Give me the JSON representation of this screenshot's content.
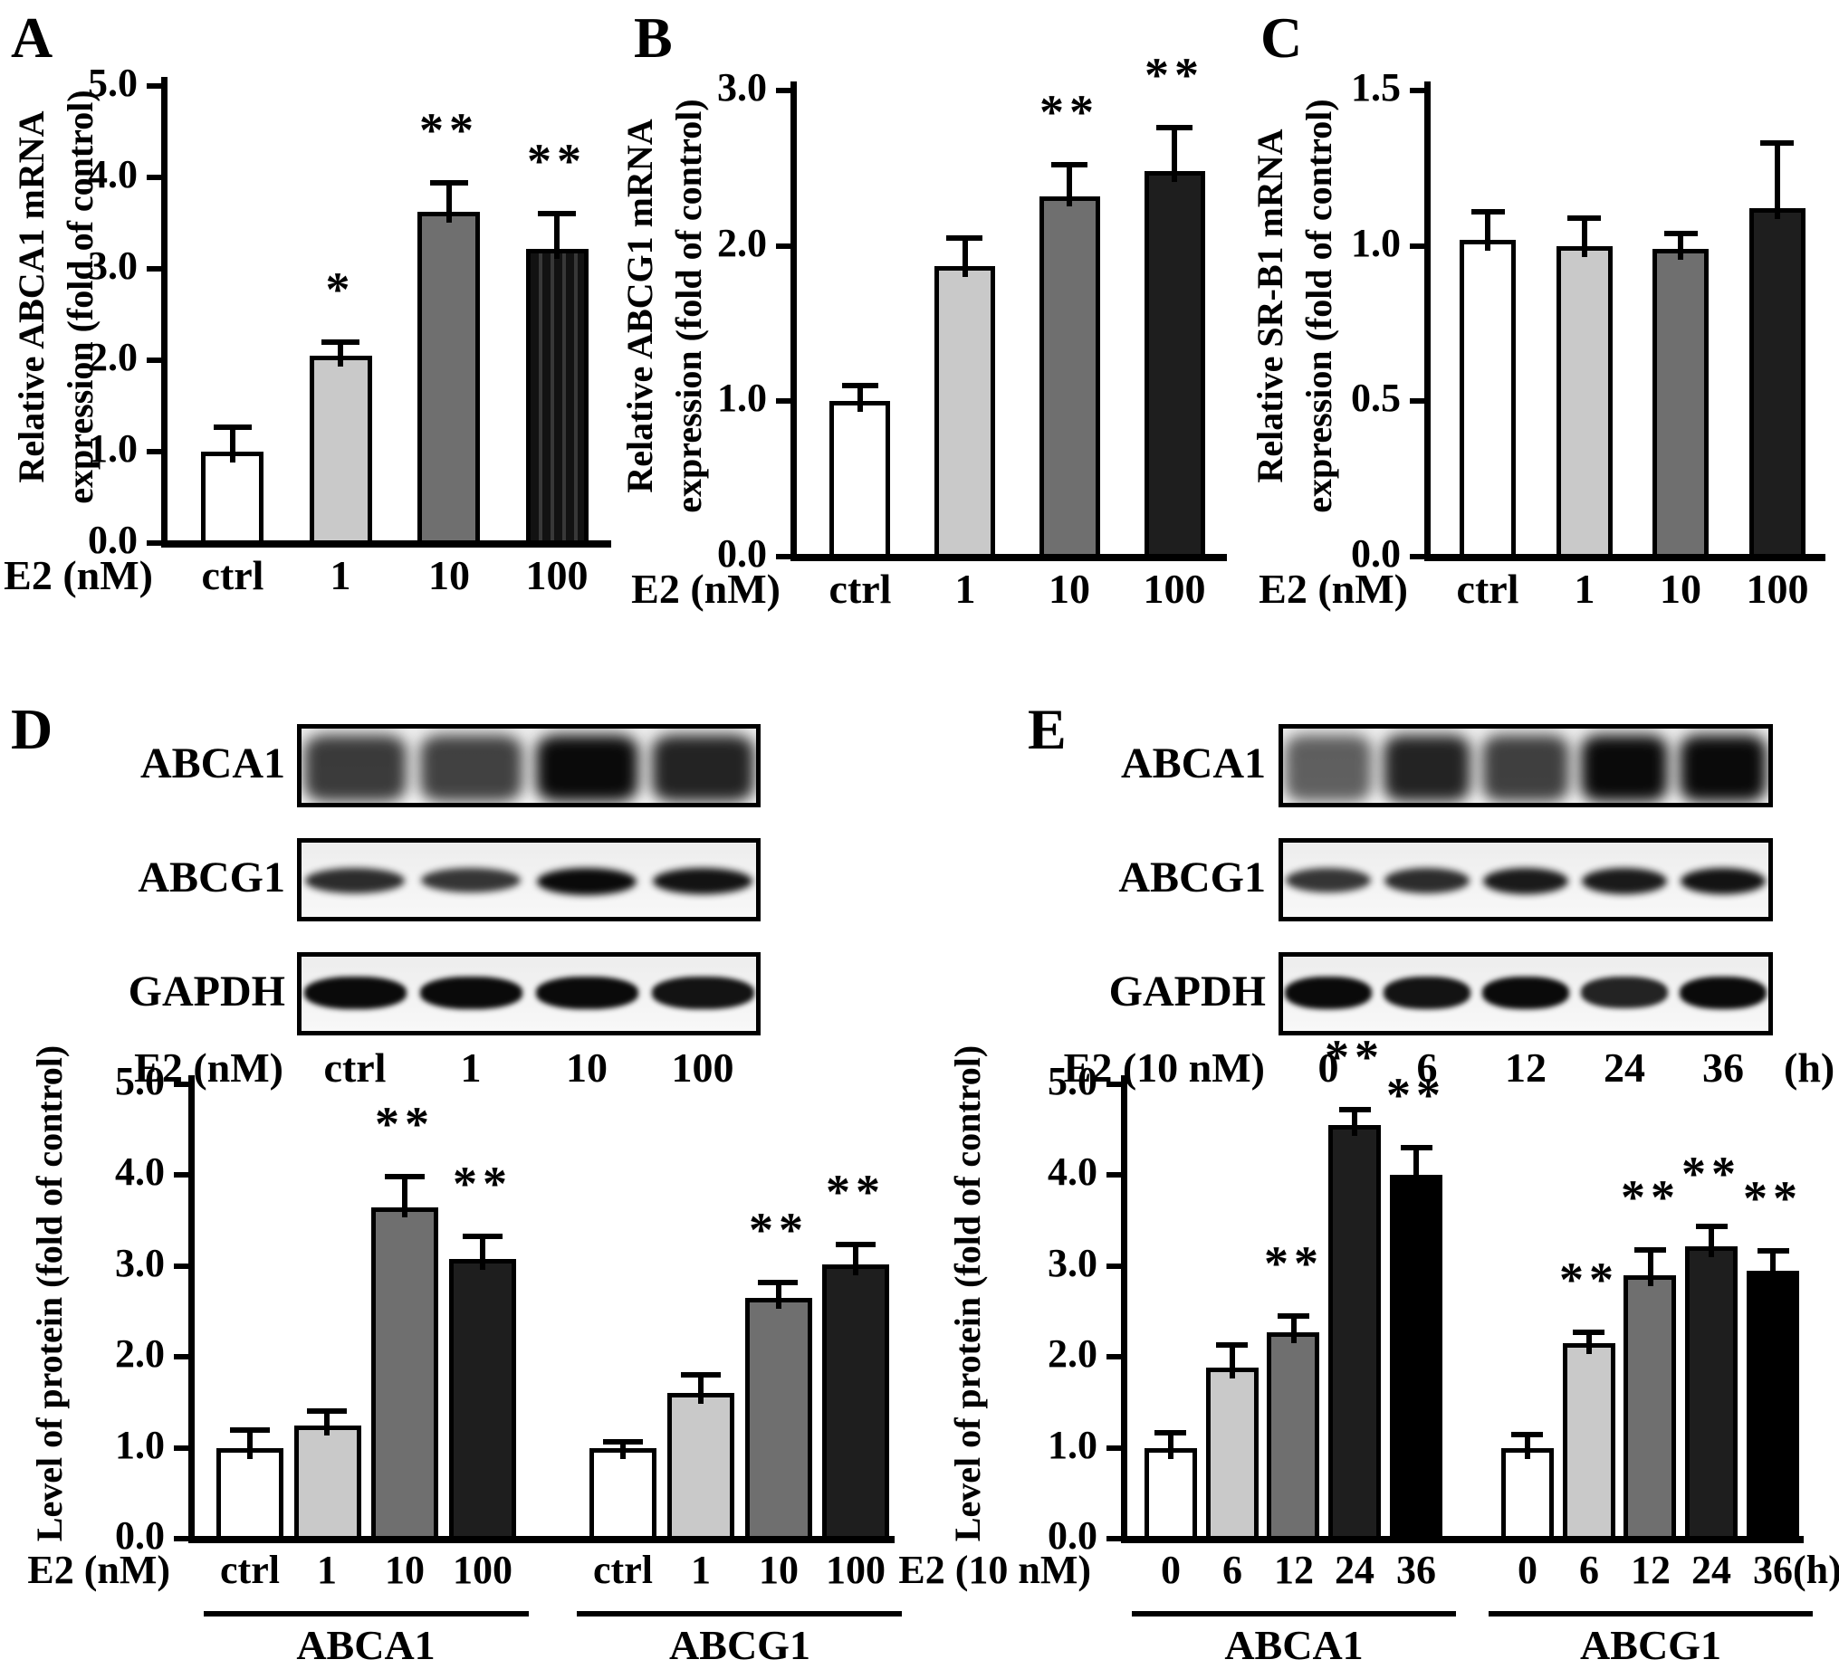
{
  "figure": {
    "panel_labels": {
      "A": "A",
      "B": "B",
      "C": "C",
      "D": "D",
      "E": "E"
    }
  },
  "styles": {
    "fill_colors": {
      "white": "#ffffff",
      "lightgray": "#c9c9c9",
      "gray": "#6f6f6f",
      "dark": "#1e1e1e",
      "black": "#000000",
      "striped": "striped"
    }
  },
  "chart_data": [
    {
      "id": "chart-A",
      "type": "bar",
      "title": "",
      "ylabel_lines": [
        "Relative ABCA1 mRNA",
        "expression (fold of control)"
      ],
      "ylim": [
        0,
        5
      ],
      "yticks": [
        "0.0",
        "1.0",
        "2.0",
        "3.0",
        "4.0",
        "5.0"
      ],
      "x_prefix": "E2 (nM)",
      "x_suffix": "",
      "grid": false,
      "legend": null,
      "groups": [
        {
          "label": "",
          "categories": [
            "ctrl",
            "1",
            "10",
            "100"
          ],
          "values": [
            1.0,
            2.05,
            3.62,
            3.22
          ],
          "errors": [
            0.27,
            0.15,
            0.32,
            0.38
          ],
          "sig": [
            "",
            "*",
            "**",
            "**"
          ],
          "fills": [
            "white",
            "lightgray",
            "gray",
            "striped"
          ]
        }
      ]
    },
    {
      "id": "chart-B",
      "type": "bar",
      "title": "",
      "ylabel_lines": [
        "Relative ABCG1 mRNA",
        "expression (fold of control)"
      ],
      "ylim": [
        0,
        3
      ],
      "yticks": [
        "0.0",
        "1.0",
        "2.0",
        "3.0"
      ],
      "x_prefix": "E2 (nM)",
      "x_suffix": "",
      "grid": false,
      "legend": null,
      "groups": [
        {
          "label": "",
          "categories": [
            "ctrl",
            "1",
            "10",
            "100"
          ],
          "values": [
            1.0,
            1.87,
            2.32,
            2.48
          ],
          "errors": [
            0.1,
            0.18,
            0.2,
            0.28
          ],
          "sig": [
            "",
            "",
            "**",
            "**"
          ],
          "fills": [
            "white",
            "lightgray",
            "gray",
            "dark"
          ]
        }
      ]
    },
    {
      "id": "chart-C",
      "type": "bar",
      "title": "",
      "ylabel_lines": [
        "Relative SR-B1 mRNA",
        "expression (fold of control)"
      ],
      "ylim": [
        0,
        1.5
      ],
      "yticks": [
        "0.0",
        "0.5",
        "1.0",
        "1.5"
      ],
      "x_prefix": "E2 (nM)",
      "x_suffix": "",
      "grid": false,
      "legend": null,
      "groups": [
        {
          "label": "",
          "categories": [
            "ctrl",
            "1",
            "10",
            "100"
          ],
          "values": [
            1.02,
            1.0,
            0.99,
            1.12
          ],
          "errors": [
            0.09,
            0.09,
            0.05,
            0.21
          ],
          "sig": [
            "",
            "",
            "",
            ""
          ],
          "fills": [
            "white",
            "lightgray",
            "gray",
            "dark"
          ]
        }
      ]
    },
    {
      "id": "chart-D-protein",
      "type": "bar",
      "title": "",
      "ylabel_lines": [
        "Level of protein (fold of control)"
      ],
      "ylim": [
        0,
        5
      ],
      "yticks": [
        "0.0",
        "1.0",
        "2.0",
        "3.0",
        "4.0",
        "5.0"
      ],
      "x_prefix": "E2 (nM)",
      "x_suffix": "",
      "grid": false,
      "legend": null,
      "groups": [
        {
          "label": "ABCA1",
          "categories": [
            "ctrl",
            "1",
            "10",
            "100"
          ],
          "values": [
            1.0,
            1.25,
            3.65,
            3.08
          ],
          "errors": [
            0.2,
            0.15,
            0.33,
            0.25
          ],
          "sig": [
            "",
            "",
            "**",
            "**"
          ],
          "fills": [
            "white",
            "lightgray",
            "gray",
            "dark"
          ]
        },
        {
          "label": "ABCG1",
          "categories": [
            "ctrl",
            "1",
            "10",
            "100"
          ],
          "values": [
            1.0,
            1.6,
            2.65,
            3.02
          ],
          "errors": [
            0.07,
            0.2,
            0.17,
            0.22
          ],
          "sig": [
            "",
            "",
            "**",
            "**"
          ],
          "fills": [
            "white",
            "lightgray",
            "gray",
            "dark"
          ]
        }
      ]
    },
    {
      "id": "chart-E-protein",
      "type": "bar",
      "title": "",
      "ylabel_lines": [
        "Level of protein (fold of control)"
      ],
      "ylim": [
        0,
        5
      ],
      "yticks": [
        "0.0",
        "1.0",
        "2.0",
        "3.0",
        "4.0",
        "5.0"
      ],
      "x_prefix": "E2 (10 nM)",
      "x_suffix": "(h)",
      "grid": false,
      "legend": null,
      "groups": [
        {
          "label": "ABCA1",
          "categories": [
            "0",
            "6",
            "12",
            "24",
            "36"
          ],
          "values": [
            1.0,
            1.88,
            2.27,
            4.55,
            4.0
          ],
          "errors": [
            0.17,
            0.25,
            0.18,
            0.17,
            0.3
          ],
          "sig": [
            "",
            "",
            "**",
            "**",
            "**"
          ],
          "fills": [
            "white",
            "lightgray",
            "gray",
            "dark",
            "black"
          ]
        },
        {
          "label": "ABCG1",
          "categories": [
            "0",
            "6",
            "12",
            "24",
            "36"
          ],
          "values": [
            1.0,
            2.15,
            2.9,
            3.22,
            2.95
          ],
          "errors": [
            0.15,
            0.12,
            0.28,
            0.22,
            0.22
          ],
          "sig": [
            "",
            "**",
            "**",
            "**",
            "**"
          ],
          "fills": [
            "white",
            "lightgray",
            "gray",
            "dark",
            "black"
          ]
        }
      ]
    }
  ],
  "blots": [
    {
      "id": "blot-D",
      "panel": "D",
      "lane_prefix": "E2 (nM)",
      "lane_suffix": "",
      "lanes": [
        "ctrl",
        "1",
        "10",
        "100"
      ],
      "rows": [
        {
          "label": "ABCA1",
          "style": "smear",
          "intensities": [
            0.72,
            0.68,
            1.0,
            0.85
          ]
        },
        {
          "label": "ABCG1",
          "style": "band",
          "intensities": [
            0.8,
            0.75,
            1.0,
            0.95
          ]
        },
        {
          "label": "GAPDH",
          "style": "thick",
          "intensities": [
            1.0,
            1.0,
            1.0,
            0.95
          ]
        }
      ]
    },
    {
      "id": "blot-E",
      "panel": "E",
      "lane_prefix": "E2 (10 nM)",
      "lane_suffix": "(h)",
      "lanes": [
        "0",
        "6",
        "12",
        "24",
        "36"
      ],
      "rows": [
        {
          "label": "ABCA1",
          "style": "smear",
          "intensities": [
            0.5,
            0.85,
            0.7,
            1.0,
            1.0
          ]
        },
        {
          "label": "ABCG1",
          "style": "band",
          "intensities": [
            0.75,
            0.8,
            0.9,
            0.9,
            0.95
          ]
        },
        {
          "label": "GAPDH",
          "style": "thick",
          "intensities": [
            1.0,
            0.95,
            1.0,
            0.85,
            1.0
          ]
        }
      ]
    }
  ]
}
